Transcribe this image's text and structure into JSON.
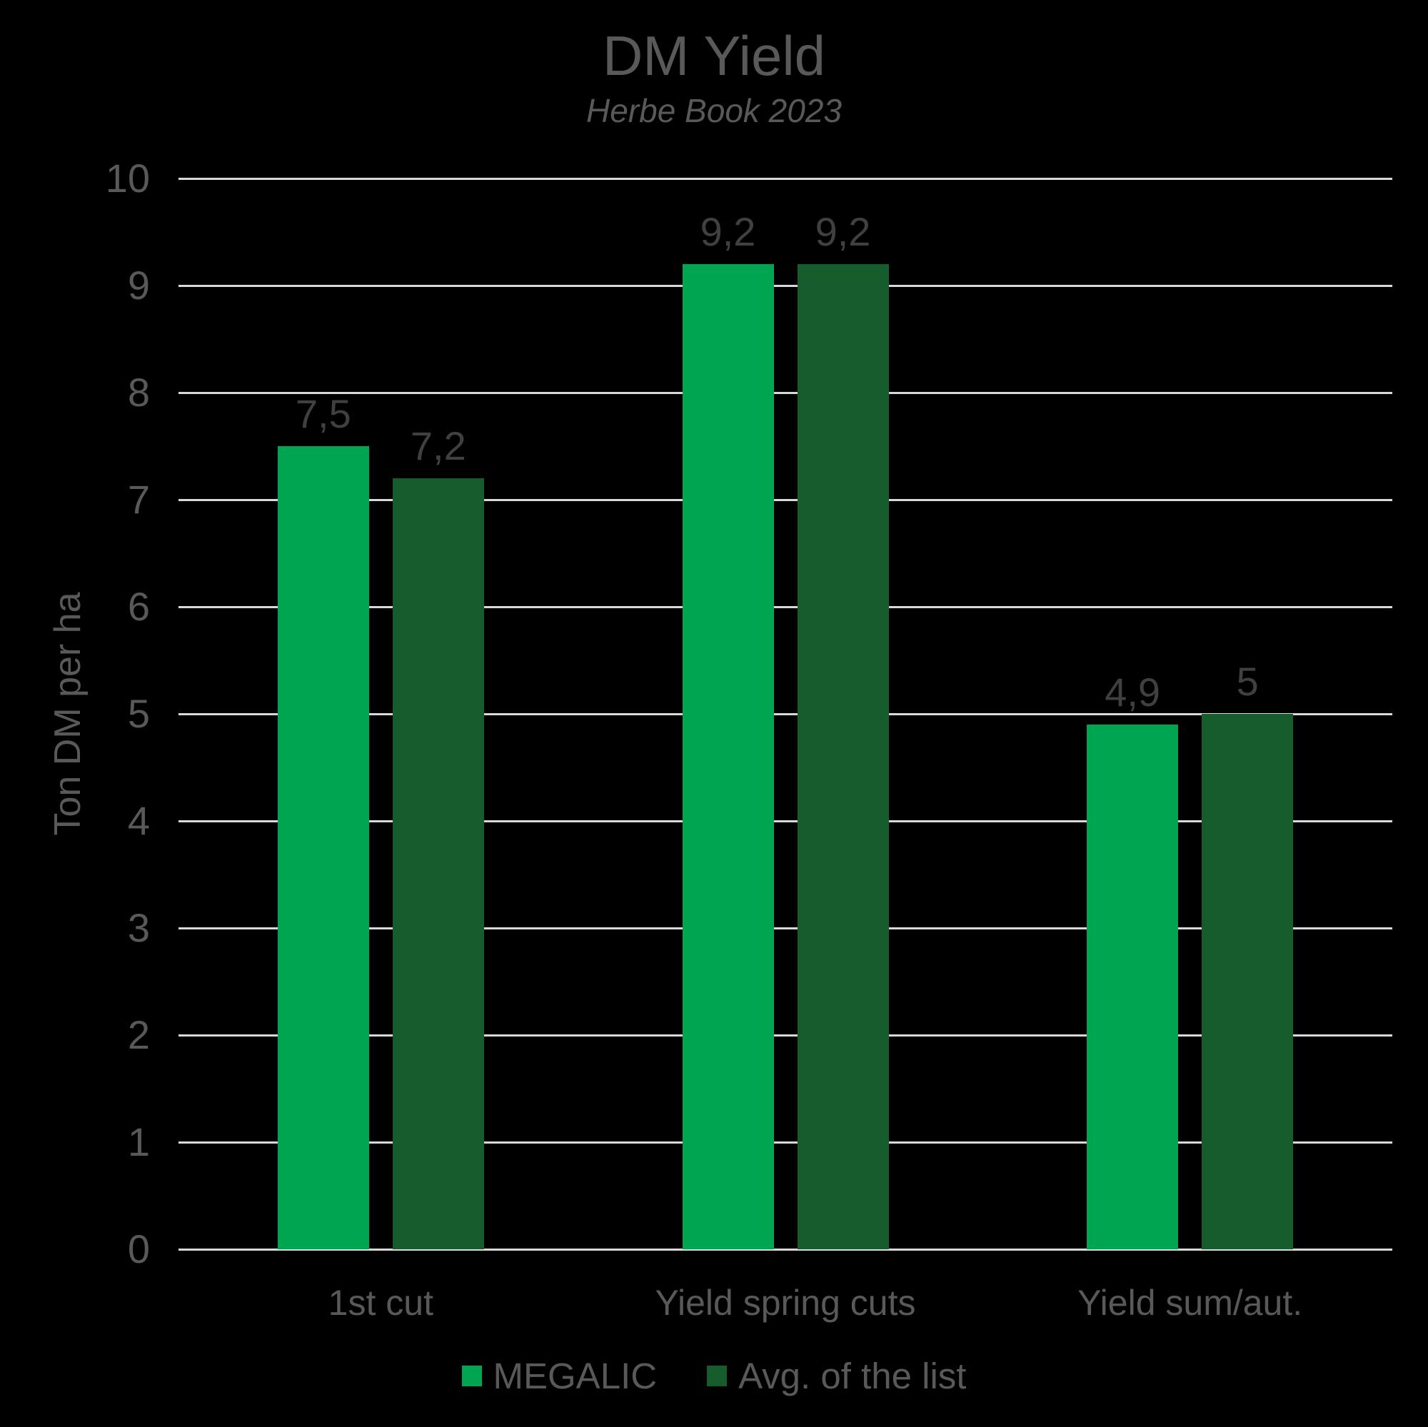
{
  "title": "DM Yield",
  "subtitle": "Herbe Book 2023",
  "colors": {
    "background": "#000000",
    "title_text": "#595959",
    "axis_text": "#595959",
    "data_label_text": "#404040",
    "gridline": "#D9D9D9",
    "megalic_green": "#00A551",
    "avg_dark_green": "#165C2C"
  },
  "chart_data": {
    "type": "bar",
    "title": "DM Yield",
    "subtitle": "Herbe Book 2023",
    "xlabel": "",
    "ylabel": "Ton DM per ha",
    "ylim": [
      0,
      10
    ],
    "ytick_step": 1,
    "yticks": [
      0,
      1,
      2,
      3,
      4,
      5,
      6,
      7,
      8,
      9,
      10
    ],
    "grid": true,
    "legend_position": "bottom",
    "categories": [
      "1st cut",
      "Yield spring cuts",
      "Yield sum/aut."
    ],
    "series": [
      {
        "name": "MEGALIC",
        "color": "#00A551",
        "values": [
          7.5,
          9.2,
          4.9
        ],
        "labels": [
          "7,5",
          "9,2",
          "4,9"
        ]
      },
      {
        "name": "Avg. of the list",
        "color": "#165C2C",
        "values": [
          7.2,
          9.2,
          5
        ],
        "labels": [
          "7,2",
          "9,2",
          "5"
        ]
      }
    ]
  }
}
